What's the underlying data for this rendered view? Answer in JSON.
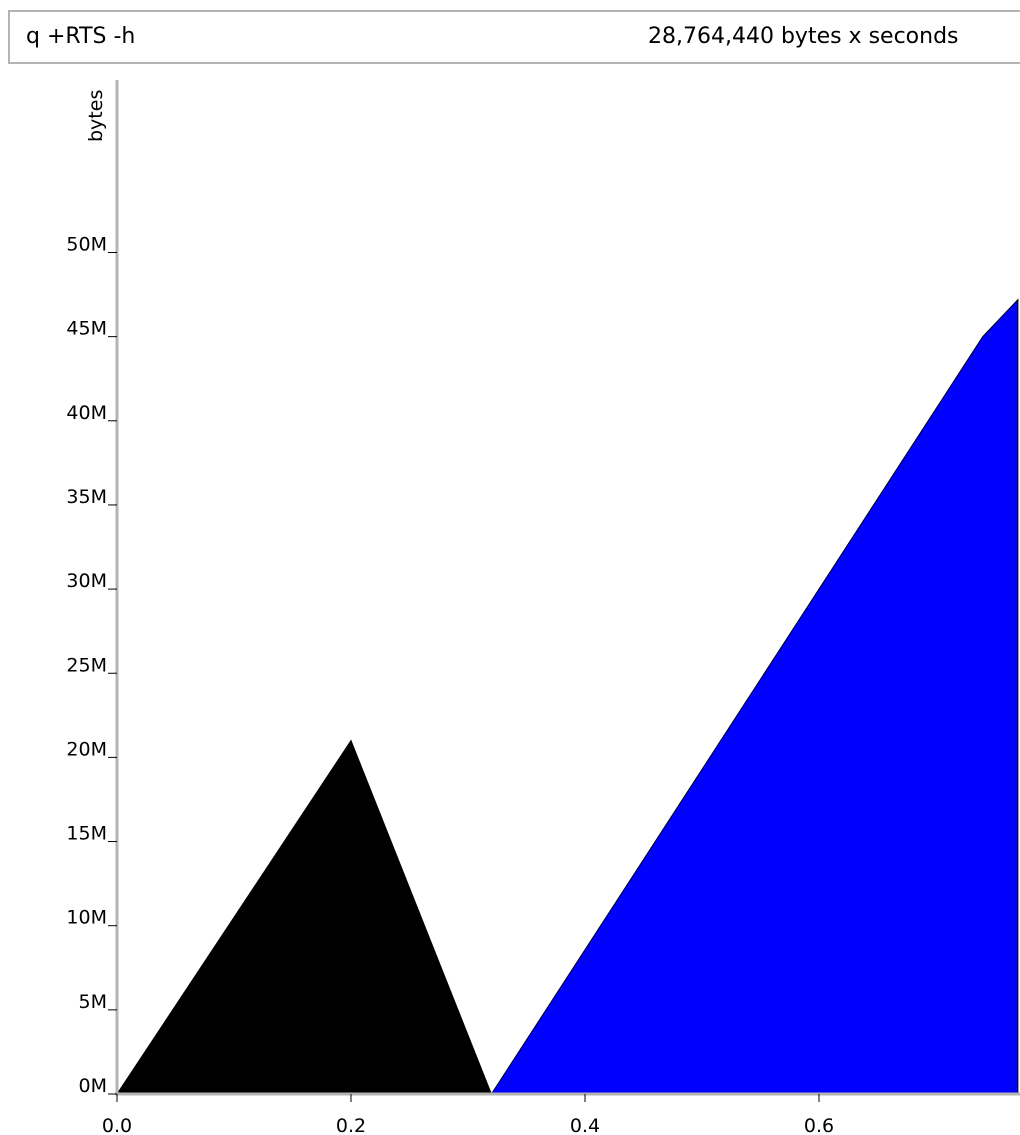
{
  "header": {
    "title": "q +RTS -h",
    "total": "28,764,440 bytes x seconds"
  },
  "chart_data": {
    "type": "area",
    "ylabel": "bytes",
    "xlabel": "",
    "xlim": [
      0.0,
      0.77
    ],
    "ylim": [
      0,
      60000000
    ],
    "x_ticks": [
      {
        "value": 0.0,
        "label": "0.0"
      },
      {
        "value": 0.2,
        "label": "0.2"
      },
      {
        "value": 0.4,
        "label": "0.4"
      },
      {
        "value": 0.6,
        "label": "0.6"
      }
    ],
    "y_ticks": [
      {
        "value": 0,
        "label": "0M"
      },
      {
        "value": 5000000,
        "label": "5M"
      },
      {
        "value": 10000000,
        "label": "10M"
      },
      {
        "value": 15000000,
        "label": "15M"
      },
      {
        "value": 20000000,
        "label": "20M"
      },
      {
        "value": 25000000,
        "label": "25M"
      },
      {
        "value": 30000000,
        "label": "30M"
      },
      {
        "value": 35000000,
        "label": "35M"
      },
      {
        "value": 40000000,
        "label": "40M"
      },
      {
        "value": 45000000,
        "label": "45M"
      },
      {
        "value": 50000000,
        "label": "50M"
      }
    ],
    "series": [
      {
        "color": "#000000",
        "points": [
          [
            0.0,
            0
          ],
          [
            0.2,
            21000000
          ],
          [
            0.32,
            0
          ]
        ]
      },
      {
        "color": "#0000ff",
        "points": [
          [
            0.32,
            0
          ],
          [
            0.74,
            45000000
          ],
          [
            0.77,
            47200000
          ],
          [
            0.77,
            0
          ]
        ]
      }
    ]
  }
}
